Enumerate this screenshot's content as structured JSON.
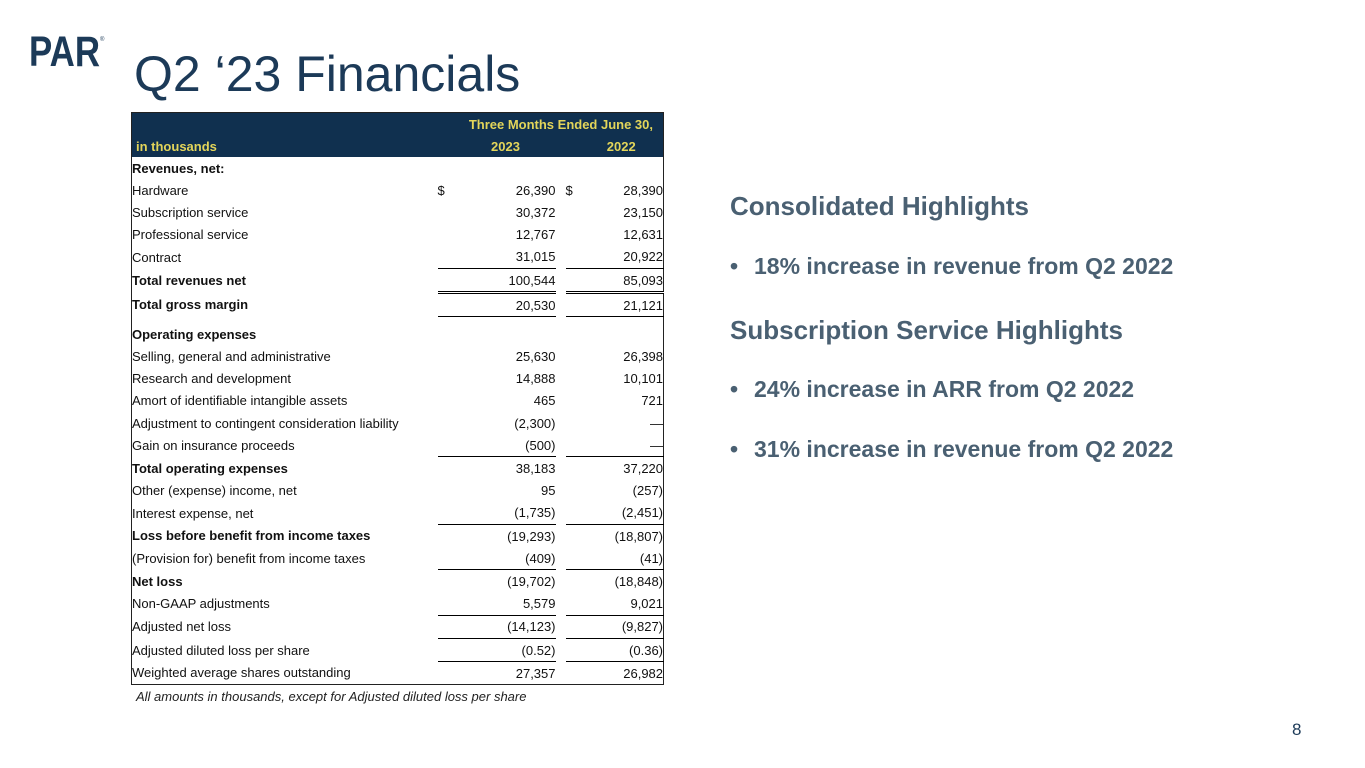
{
  "logo": {
    "text": "PAR",
    "mark": "®"
  },
  "title": "Q2 ‘23 Financials",
  "table": {
    "header_span": "Three Months Ended June 30,",
    "unit_label": "in thousands",
    "year1": "2023",
    "year2": "2022",
    "rows": {
      "revenues": "Revenues, net:",
      "hardware": {
        "label": "Hardware",
        "dollar1": "$",
        "v1": "26,390",
        "dollar2": "$",
        "v2": "28,390"
      },
      "subscription": {
        "label": "Subscription service",
        "v1": "30,372",
        "v2": "23,150"
      },
      "professional": {
        "label": "Professional service",
        "v1": "12,767",
        "v2": "12,631"
      },
      "contract": {
        "label": "Contract",
        "v1": "31,015",
        "v2": "20,922"
      },
      "total_rev": {
        "label": "Total revenues net",
        "v1": "100,544",
        "v2": "85,093"
      },
      "gross_margin": {
        "label": "Total gross margin",
        "v1": "20,530",
        "v2": "21,121"
      },
      "opex": "Operating expenses",
      "sga": {
        "label": "Selling, general and administrative",
        "v1": "25,630",
        "v2": "26,398"
      },
      "rnd": {
        "label": "Research and development",
        "v1": "14,888",
        "v2": "10,101"
      },
      "amort": {
        "label": "Amort of identifiable intangible assets",
        "v1": "465",
        "v2": "721"
      },
      "adjustment": {
        "label": "Adjustment to contingent consideration liability",
        "v1": "(2,300)",
        "v2": "—"
      },
      "insurance": {
        "label": "Gain on insurance proceeds",
        "v1": "(500)",
        "v2": "—"
      },
      "total_opex": {
        "label": "Total operating expenses",
        "v1": "38,183",
        "v2": "37,220"
      },
      "other": {
        "label": "Other (expense) income, net",
        "v1": "95",
        "v2": "(257)"
      },
      "interest": {
        "label": "Interest expense, net",
        "v1": "(1,735)",
        "v2": "(2,451)"
      },
      "loss_before": {
        "label": "Loss before benefit from income taxes",
        "v1": "(19,293)",
        "v2": "(18,807)"
      },
      "provision": {
        "label": "(Provision for) benefit from income taxes",
        "v1": "(409)",
        "v2": "(41)"
      },
      "net_loss": {
        "label": "Net loss",
        "v1": "(19,702)",
        "v2": "(18,848)"
      },
      "nongaap": {
        "label": "Non-GAAP adjustments",
        "v1": "5,579",
        "v2": "9,021"
      },
      "adj_net_loss": {
        "label": "Adjusted net loss",
        "v1": "(14,123)",
        "v2": "(9,827)"
      },
      "adj_eps": {
        "label": "Adjusted diluted loss per share",
        "v1": "(0.52)",
        "v2": "(0.36)"
      },
      "shares": {
        "label": "Weighted average shares outstanding",
        "v1": "27,357",
        "v2": "26,982"
      }
    }
  },
  "footnote": "All amounts in thousands, except for Adjusted diluted loss per share",
  "highlights": {
    "consolidated_heading": "Consolidated Highlights",
    "consolidated_bullets": [
      "18% increase in revenue from Q2 2022"
    ],
    "subscription_heading": "Subscription Service Highlights",
    "subscription_bullets": [
      "24% increase in ARR from Q2 2022",
      "31% increase in revenue from Q2 2022"
    ],
    "bullet_char": "•"
  },
  "page_number": "8",
  "colors": {
    "navy": "#10304f",
    "header_text": "#e3d55a",
    "title": "#1c3a58",
    "highlight": "#4a6072"
  }
}
